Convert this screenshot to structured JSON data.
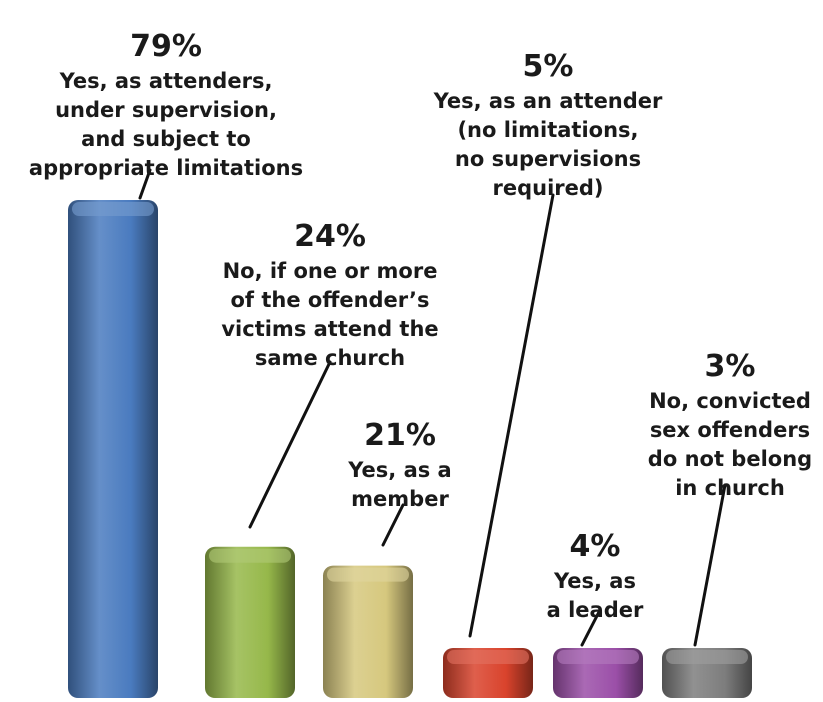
{
  "chart_data": {
    "type": "bar",
    "title": "",
    "xlabel": "",
    "ylabel": "",
    "ylim": [
      0,
      100
    ],
    "grid": false,
    "legend": "none",
    "categories": [
      "Yes, as attenders, under supervision, and subject to appropriate limitations",
      "No, if one or more of the offender’s victims attend the same church",
      "Yes, as a member",
      "Yes, as an attender (no limitations, no supervisions required)",
      "Yes, as a leader",
      "No, convicted sex offenders do not belong in church"
    ],
    "values": [
      79,
      24,
      21,
      5,
      4,
      3
    ],
    "data_labels": [
      "79%",
      "24%",
      "21%",
      "5%",
      "4%",
      "3%"
    ],
    "label_lines": [
      [
        "Yes, as attenders,",
        "under supervision,",
        "and subject to",
        "appropriate limitations"
      ],
      [
        "No, if one or more",
        "of the offender’s",
        "victims attend the",
        "same church"
      ],
      [
        "Yes, as a",
        "member"
      ],
      [
        "Yes, as an attender",
        "(no limitations,",
        "no supervisions",
        "required)"
      ],
      [
        "Yes, as",
        "a leader"
      ],
      [
        "No, convicted",
        "sex offenders",
        "do not belong",
        "in church"
      ]
    ],
    "colors": [
      "#4a7bbf",
      "#96b84a",
      "#d6c87e",
      "#d9432c",
      "#9b4fa8",
      "#7d7d7d"
    ]
  }
}
